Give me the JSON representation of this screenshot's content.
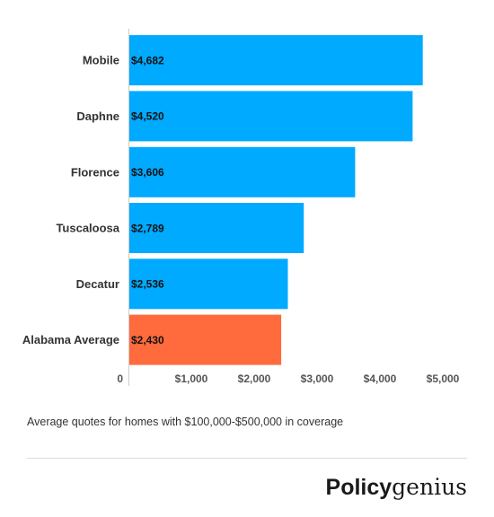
{
  "chart_data": {
    "type": "bar",
    "orientation": "horizontal",
    "categories": [
      "Mobile",
      "Daphne",
      "Florence",
      "Tuscaloosa",
      "Decatur",
      "Alabama Average"
    ],
    "values": [
      4682,
      4520,
      3606,
      2789,
      2536,
      2430
    ],
    "data_labels": [
      "$4,682",
      "$4,520",
      "$3,606",
      "$2,789",
      "$2,536",
      "$2,430"
    ],
    "x_ticks": [
      {
        "value": 0,
        "label": "0"
      },
      {
        "value": 1000,
        "label": "$1,000"
      },
      {
        "value": 2000,
        "label": "$2,000"
      },
      {
        "value": 3000,
        "label": "$3,000"
      },
      {
        "value": 4000,
        "label": "$4,000"
      },
      {
        "value": 5000,
        "label": "$5,000"
      }
    ],
    "xlim": [
      0,
      5000
    ],
    "grid": false,
    "legend": "none",
    "colors": {
      "default_bar": "#00aaff",
      "highlight_bar": "#ff6b3d"
    },
    "highlight_category": "Alabama Average"
  },
  "caption": "Average quotes for homes with $100,000-$500,000 in coverage",
  "brand": {
    "part1": "Policy",
    "part2": "genius"
  }
}
